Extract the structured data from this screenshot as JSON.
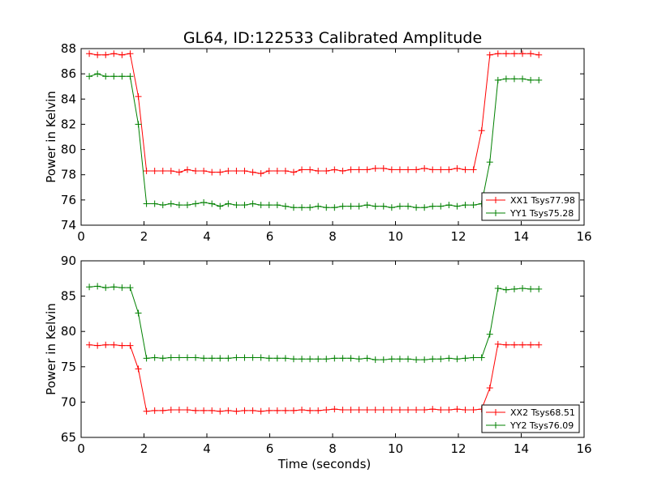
{
  "figure": {
    "title": "GL64, ID:122533 Calibrated Amplitude"
  },
  "colors": {
    "series1": "#ff0000",
    "series2": "#008000"
  },
  "chart_data": [
    {
      "type": "line",
      "title": "GL64, ID:122533 Calibrated Amplitude",
      "xlabel": "",
      "ylabel": "Power in Kelvin",
      "xlim": [
        0,
        16
      ],
      "ylim": [
        74,
        88
      ],
      "xticks": [
        0,
        2,
        4,
        6,
        8,
        10,
        12,
        14,
        16
      ],
      "yticks": [
        74,
        76,
        78,
        80,
        82,
        84,
        86,
        88
      ],
      "grid": false,
      "legend_position": "lower-right",
      "x": [
        0.26,
        0.52,
        0.78,
        1.04,
        1.3,
        1.56,
        1.82,
        2.08,
        2.34,
        2.6,
        2.86,
        3.12,
        3.38,
        3.64,
        3.9,
        4.16,
        4.42,
        4.68,
        4.94,
        5.2,
        5.46,
        5.72,
        5.98,
        6.24,
        6.5,
        6.76,
        7.02,
        7.28,
        7.54,
        7.8,
        8.06,
        8.32,
        8.58,
        8.84,
        9.1,
        9.36,
        9.62,
        9.88,
        10.14,
        10.4,
        10.66,
        10.92,
        11.18,
        11.44,
        11.7,
        11.96,
        12.22,
        12.48,
        12.74,
        13.0,
        13.26,
        13.52,
        13.78,
        14.04,
        14.3,
        14.56
      ],
      "series": [
        {
          "name": "XX1 Tsys77.98",
          "color": "#ff0000",
          "values": [
            87.6,
            87.5,
            87.5,
            87.6,
            87.5,
            87.6,
            84.2,
            78.3,
            78.3,
            78.3,
            78.3,
            78.2,
            78.4,
            78.3,
            78.3,
            78.2,
            78.2,
            78.3,
            78.3,
            78.3,
            78.2,
            78.1,
            78.3,
            78.3,
            78.3,
            78.2,
            78.4,
            78.4,
            78.3,
            78.3,
            78.4,
            78.3,
            78.4,
            78.4,
            78.4,
            78.5,
            78.5,
            78.4,
            78.4,
            78.4,
            78.4,
            78.5,
            78.4,
            78.4,
            78.4,
            78.5,
            78.4,
            78.4,
            81.5,
            87.5,
            87.6,
            87.6,
            87.6,
            87.6,
            87.6,
            87.5
          ]
        },
        {
          "name": "YY1 Tsys75.28",
          "color": "#008000",
          "values": [
            85.8,
            86.0,
            85.8,
            85.8,
            85.8,
            85.8,
            82.0,
            75.7,
            75.7,
            75.6,
            75.7,
            75.6,
            75.6,
            75.7,
            75.8,
            75.7,
            75.5,
            75.7,
            75.6,
            75.6,
            75.7,
            75.6,
            75.6,
            75.6,
            75.5,
            75.4,
            75.4,
            75.4,
            75.5,
            75.4,
            75.4,
            75.5,
            75.5,
            75.5,
            75.6,
            75.5,
            75.5,
            75.4,
            75.5,
            75.5,
            75.4,
            75.4,
            75.5,
            75.5,
            75.6,
            75.5,
            75.6,
            75.6,
            75.7,
            79.0,
            85.5,
            85.6,
            85.6,
            85.6,
            85.5,
            85.5
          ]
        }
      ]
    },
    {
      "type": "line",
      "title": "",
      "xlabel": "Time (seconds)",
      "ylabel": "Power in Kelvin",
      "xlim": [
        0,
        16
      ],
      "ylim": [
        65,
        90
      ],
      "xticks": [
        0,
        2,
        4,
        6,
        8,
        10,
        12,
        14,
        16
      ],
      "yticks": [
        65,
        70,
        75,
        80,
        85,
        90
      ],
      "grid": false,
      "legend_position": "lower-right",
      "x": [
        0.26,
        0.52,
        0.78,
        1.04,
        1.3,
        1.56,
        1.82,
        2.08,
        2.34,
        2.6,
        2.86,
        3.12,
        3.38,
        3.64,
        3.9,
        4.16,
        4.42,
        4.68,
        4.94,
        5.2,
        5.46,
        5.72,
        5.98,
        6.24,
        6.5,
        6.76,
        7.02,
        7.28,
        7.54,
        7.8,
        8.06,
        8.32,
        8.58,
        8.84,
        9.1,
        9.36,
        9.62,
        9.88,
        10.14,
        10.4,
        10.66,
        10.92,
        11.18,
        11.44,
        11.7,
        11.96,
        12.22,
        12.48,
        12.74,
        13.0,
        13.26,
        13.52,
        13.78,
        14.04,
        14.3,
        14.56
      ],
      "series": [
        {
          "name": "XX2 Tsys68.51",
          "color": "#ff0000",
          "values": [
            78.1,
            78.0,
            78.1,
            78.1,
            78.0,
            78.0,
            74.7,
            68.7,
            68.8,
            68.8,
            68.9,
            68.9,
            68.9,
            68.8,
            68.8,
            68.8,
            68.7,
            68.8,
            68.7,
            68.8,
            68.8,
            68.7,
            68.8,
            68.8,
            68.8,
            68.8,
            68.9,
            68.8,
            68.8,
            68.9,
            69.0,
            68.9,
            68.9,
            68.9,
            68.9,
            68.9,
            68.9,
            68.9,
            68.9,
            68.9,
            68.9,
            68.9,
            69.0,
            68.9,
            68.9,
            69.0,
            68.9,
            68.9,
            69.0,
            72.0,
            78.2,
            78.1,
            78.1,
            78.1,
            78.1,
            78.1
          ]
        },
        {
          "name": "YY2 Tsys76.09",
          "color": "#008000",
          "values": [
            86.3,
            86.4,
            86.2,
            86.3,
            86.2,
            86.2,
            82.6,
            76.2,
            76.3,
            76.2,
            76.3,
            76.3,
            76.3,
            76.3,
            76.2,
            76.2,
            76.2,
            76.2,
            76.3,
            76.3,
            76.3,
            76.3,
            76.2,
            76.2,
            76.2,
            76.1,
            76.1,
            76.1,
            76.1,
            76.1,
            76.2,
            76.2,
            76.2,
            76.1,
            76.2,
            76.0,
            76.0,
            76.1,
            76.1,
            76.1,
            76.0,
            76.0,
            76.1,
            76.1,
            76.2,
            76.1,
            76.2,
            76.3,
            76.3,
            79.6,
            86.1,
            85.9,
            86.0,
            86.1,
            86.0,
            86.0
          ]
        }
      ]
    }
  ]
}
